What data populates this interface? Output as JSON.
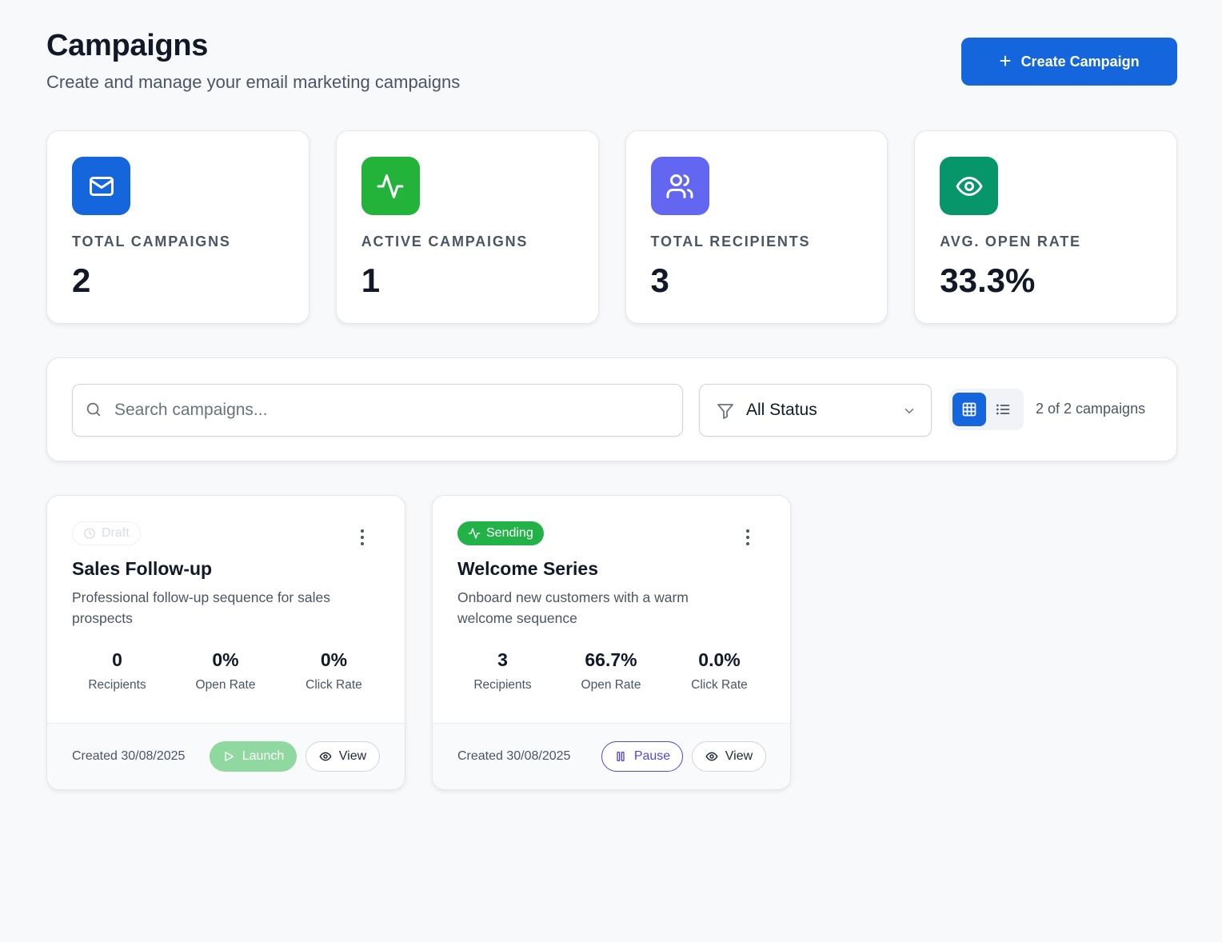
{
  "header": {
    "title": "Campaigns",
    "subtitle": "Create and manage your email marketing campaigns",
    "create_label": "Create Campaign"
  },
  "stats": [
    {
      "label": "TOTAL CAMPAIGNS",
      "value": "2",
      "icon": "mail-icon",
      "color": "#1565dc"
    },
    {
      "label": "ACTIVE CAMPAIGNS",
      "value": "1",
      "icon": "activity-icon",
      "color": "#23b23a"
    },
    {
      "label": "TOTAL RECIPIENTS",
      "value": "3",
      "icon": "users-icon",
      "color": "#6366f1"
    },
    {
      "label": "AVG. OPEN RATE",
      "value": "33.3%",
      "icon": "eye-icon",
      "color": "#079669"
    }
  ],
  "filters": {
    "search_placeholder": "Search campaigns...",
    "status_value": "All Status",
    "view_mode": "grid",
    "count_text": "2 of 2 campaigns"
  },
  "campaigns": [
    {
      "status": "Draft",
      "title": "Sales Follow-up",
      "description": "Professional follow-up sequence for sales prospects",
      "metrics": [
        {
          "value": "0",
          "label": "Recipients"
        },
        {
          "value": "0%",
          "label": "Open Rate"
        },
        {
          "value": "0%",
          "label": "Click Rate"
        }
      ],
      "created": "Created 30/08/2025",
      "primary_action": "Launch",
      "view_label": "View"
    },
    {
      "status": "Sending",
      "title": "Welcome Series",
      "description": "Onboard new customers with a warm welcome sequence",
      "metrics": [
        {
          "value": "3",
          "label": "Recipients"
        },
        {
          "value": "66.7%",
          "label": "Open Rate"
        },
        {
          "value": "0.0%",
          "label": "Click Rate"
        }
      ],
      "created": "Created 30/08/2025",
      "primary_action": "Pause",
      "view_label": "View"
    }
  ],
  "colors": {
    "primary": "#1565dc",
    "success": "#22b247",
    "indigo": "#4f46e5",
    "background": "#f8f9fb"
  }
}
